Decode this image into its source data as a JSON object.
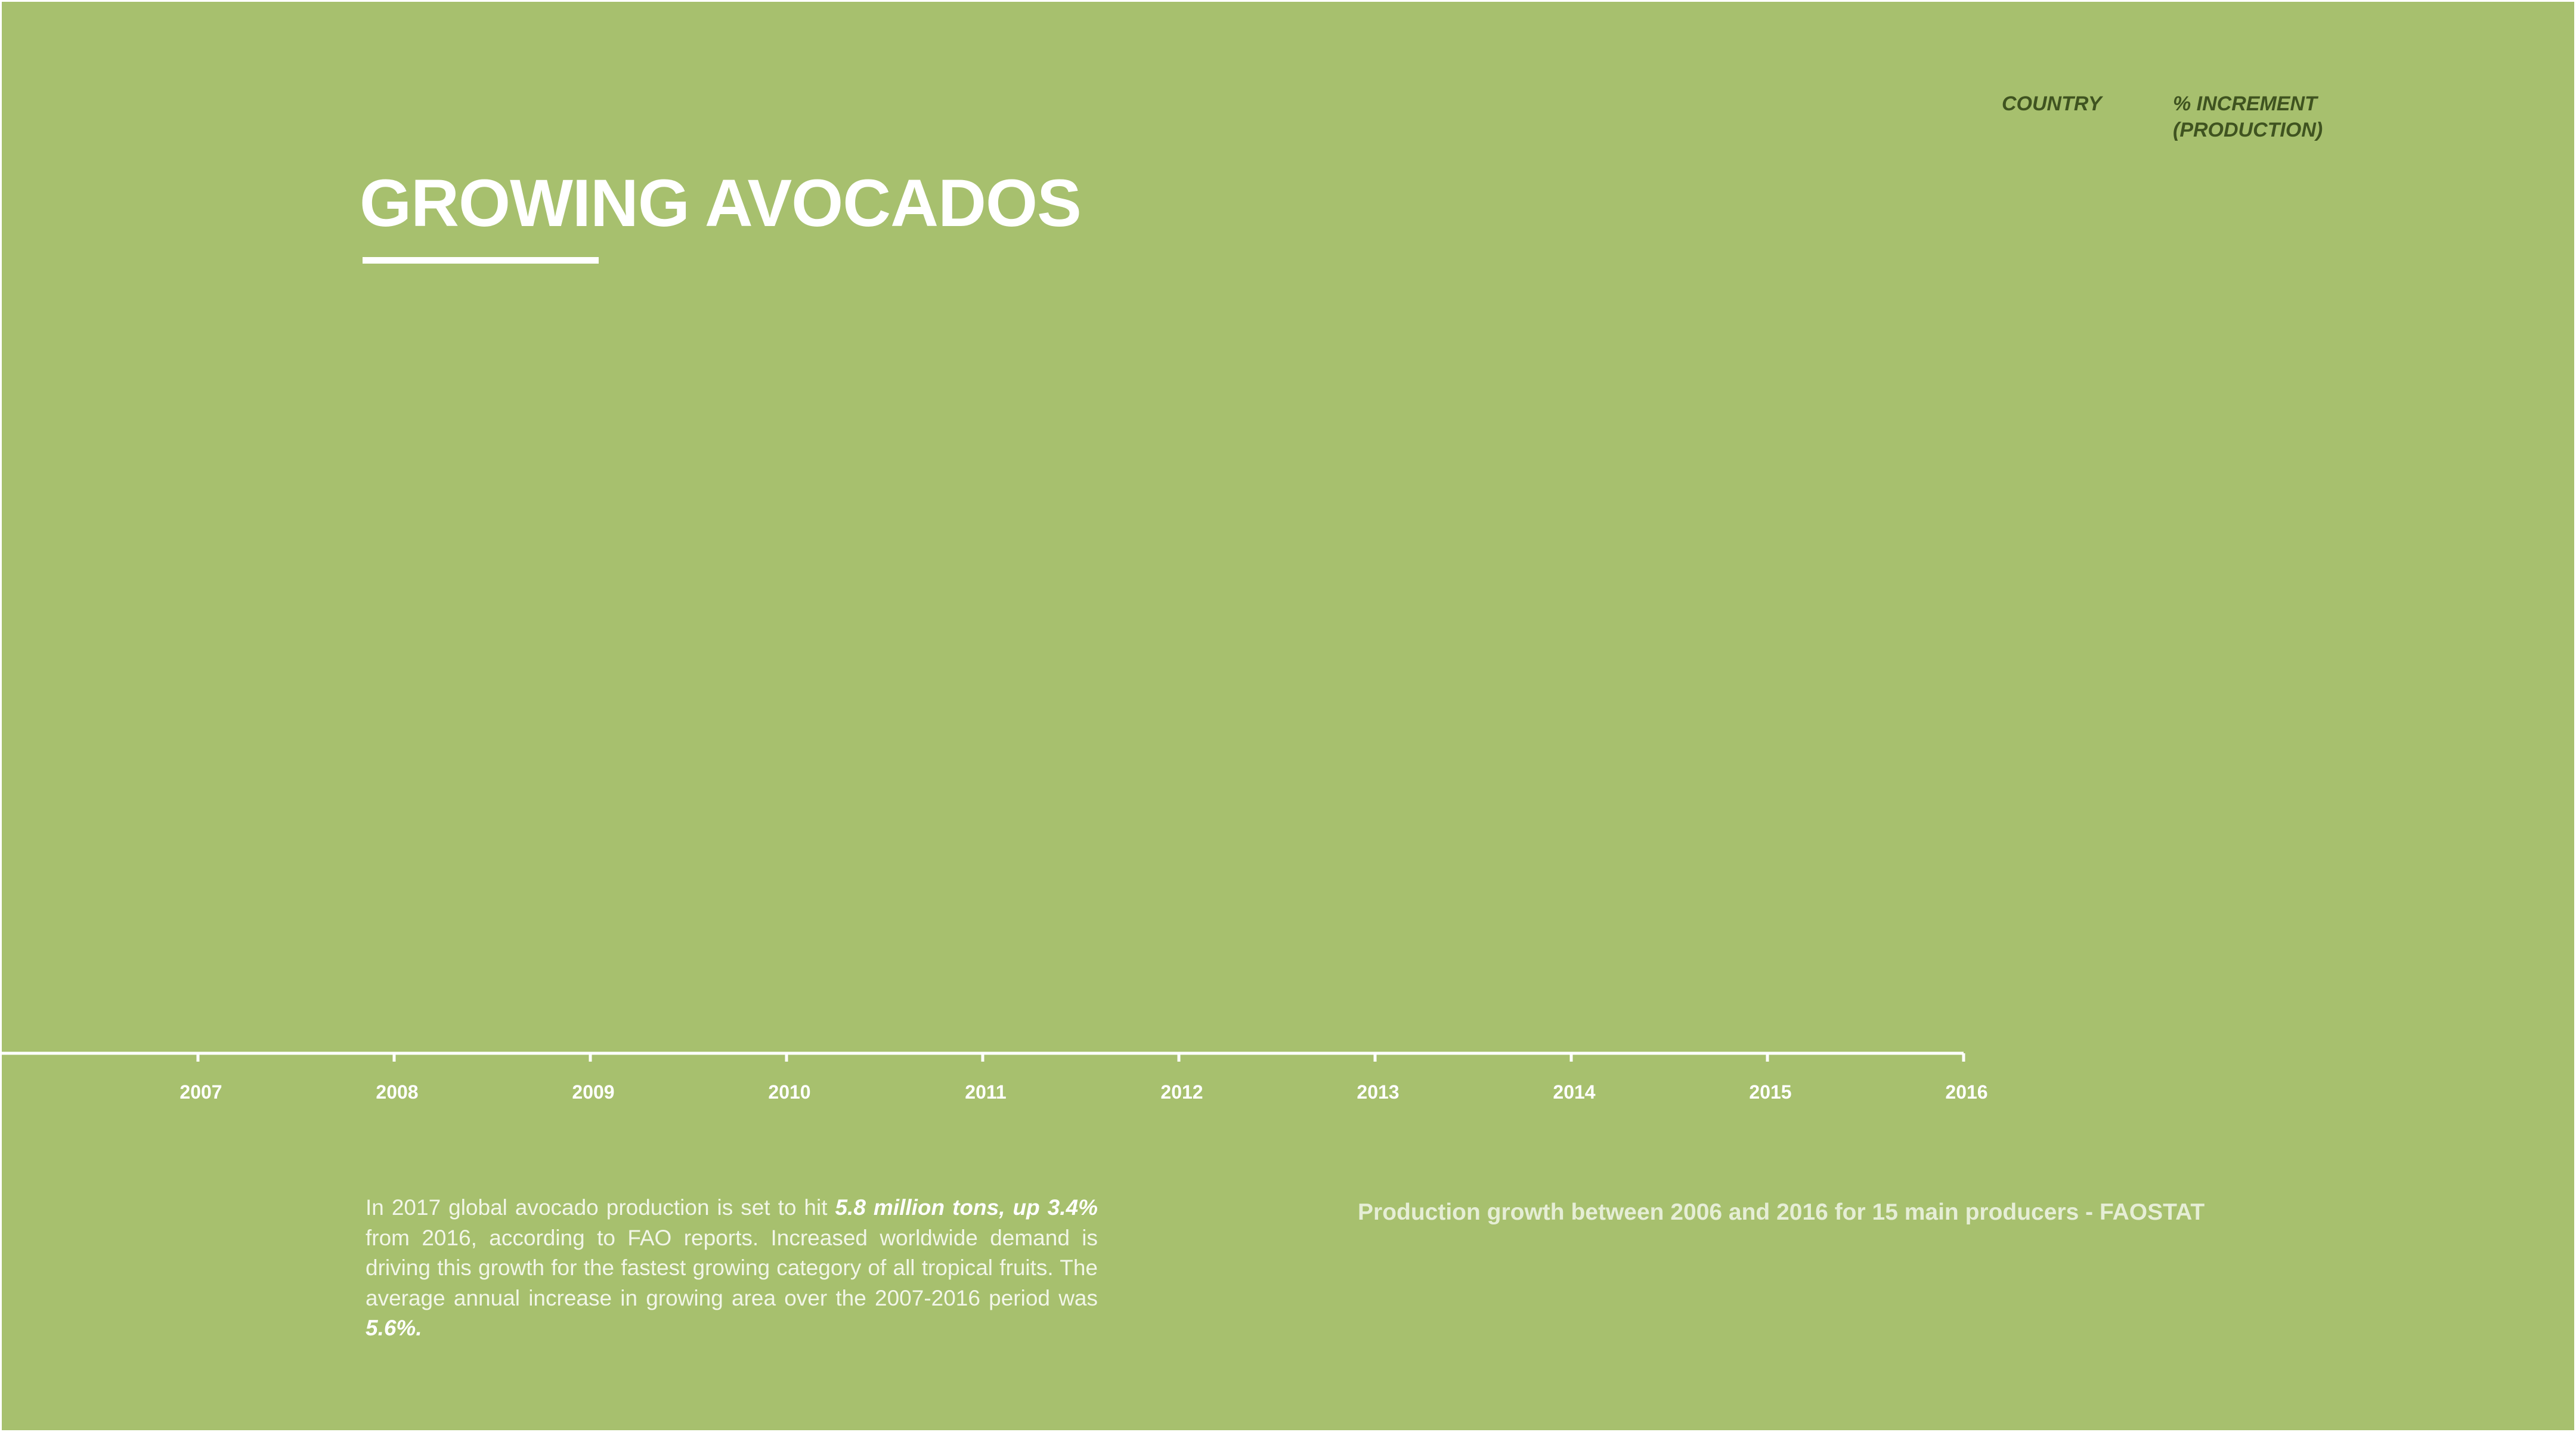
{
  "header": {
    "title": "GROWING AVOCADOS"
  },
  "legend": {
    "country_label": "COUNTRY",
    "increment_label_line1": "% INCREMENT",
    "increment_label_line2": "(PRODUCTION)"
  },
  "description": {
    "part1": "In 2017 global avocado production is set to hit ",
    "highlight1": "5.8 million tons, up 3.4%",
    "part2": " from 2016, according to FAO reports. Increased worldwide demand is driving this growth for the fastest growing category of all tropical fruits. The average annual increase in growing area over the 2007-2016 period was ",
    "highlight2": "5.6%."
  },
  "caption": "Production growth between 2006 and 2016 for 15 main producers - FAOSTAT",
  "colors": {
    "background": "#a7c06e",
    "text_light": "#ffffff",
    "legend_text": "#3f5320"
  },
  "chart_data": {
    "type": "line",
    "title": "GROWING AVOCADOS",
    "subtitle": "Production growth between 2006 and 2016 for 15 main producers - FAOSTAT",
    "x_ticks": [
      "2007",
      "2008",
      "2009",
      "2010",
      "2011",
      "2012",
      "2013",
      "2014",
      "2015",
      "2016"
    ],
    "xlim": [
      2006,
      2016
    ],
    "series": [],
    "grid": false,
    "legend_columns": [
      "COUNTRY",
      "% INCREMENT (PRODUCTION)"
    ],
    "legend_position": "top-right"
  }
}
